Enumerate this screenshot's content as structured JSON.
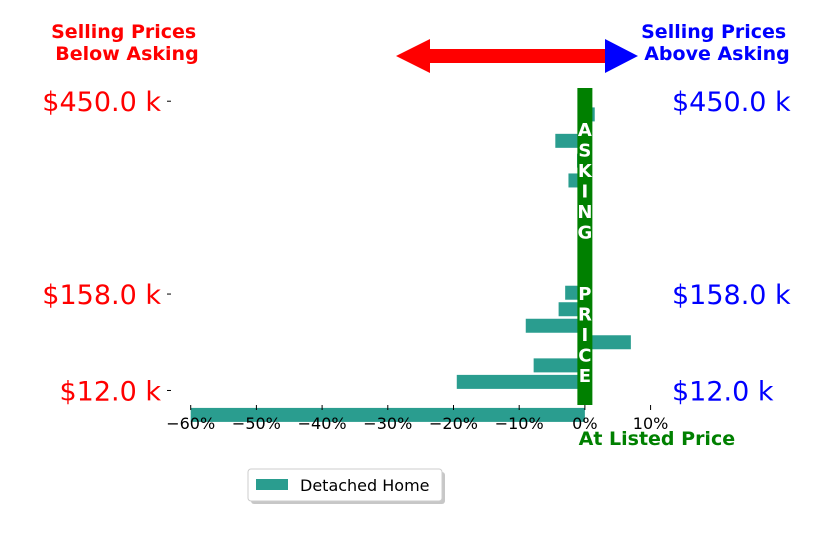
{
  "chart_data": {
    "type": "bar",
    "orientation": "horizontal",
    "annotations": {
      "below_label": "Selling Prices\nBelow Asking",
      "above_label": "Selling Prices\nAbove Asking",
      "vertical_label": "ASKING  PRICE",
      "x_annotation": "At Listed Price",
      "below_color": "#ff0000",
      "above_color": "#0000ff",
      "reference_color": "#008000"
    },
    "price_ticks_left": [
      {
        "label": "$450.0 k",
        "y": 450
      },
      {
        "label": "$158.0 k",
        "y": 158
      },
      {
        "label": "$12.0 k",
        "y": 12
      }
    ],
    "price_ticks_right": [
      {
        "label": "$450.0 k",
        "y": 450
      },
      {
        "label": "$158.0 k",
        "y": 158
      },
      {
        "label": "$12.0 k",
        "y": 12
      }
    ],
    "x_ticks": [
      {
        "label": "−60%",
        "value": -60
      },
      {
        "label": "−50%",
        "value": -50
      },
      {
        "label": "−40%",
        "value": -40
      },
      {
        "label": "−30%",
        "value": -30
      },
      {
        "label": "−20%",
        "value": -20
      },
      {
        "label": "−10%",
        "value": -10
      },
      {
        "label": "0%",
        "value": 0
      },
      {
        "label": "10%",
        "value": 10
      }
    ],
    "xlim": [
      -63,
      12.5
    ],
    "ylim": [
      -10,
      470
    ],
    "series": [
      {
        "name": "Detached Home",
        "color": "#2a9d8f",
        "points": [
          {
            "price_k": 430,
            "pct": 1.5
          },
          {
            "price_k": 390,
            "pct": -4.5
          },
          {
            "price_k": 360,
            "pct": -1.2
          },
          {
            "price_k": 330,
            "pct": -2.5
          },
          {
            "price_k": 160,
            "pct": -3.0
          },
          {
            "price_k": 135,
            "pct": -4.0
          },
          {
            "price_k": 110,
            "pct": -9.0
          },
          {
            "price_k": 85,
            "pct": 7.0
          },
          {
            "price_k": 50,
            "pct": -7.8
          },
          {
            "price_k": 25,
            "pct": -19.5
          },
          {
            "price_k": -25,
            "pct": -60.0
          }
        ]
      }
    ],
    "legend": {
      "placement": "bottom-center",
      "entries": [
        "Detached Home"
      ]
    },
    "grid": false
  }
}
